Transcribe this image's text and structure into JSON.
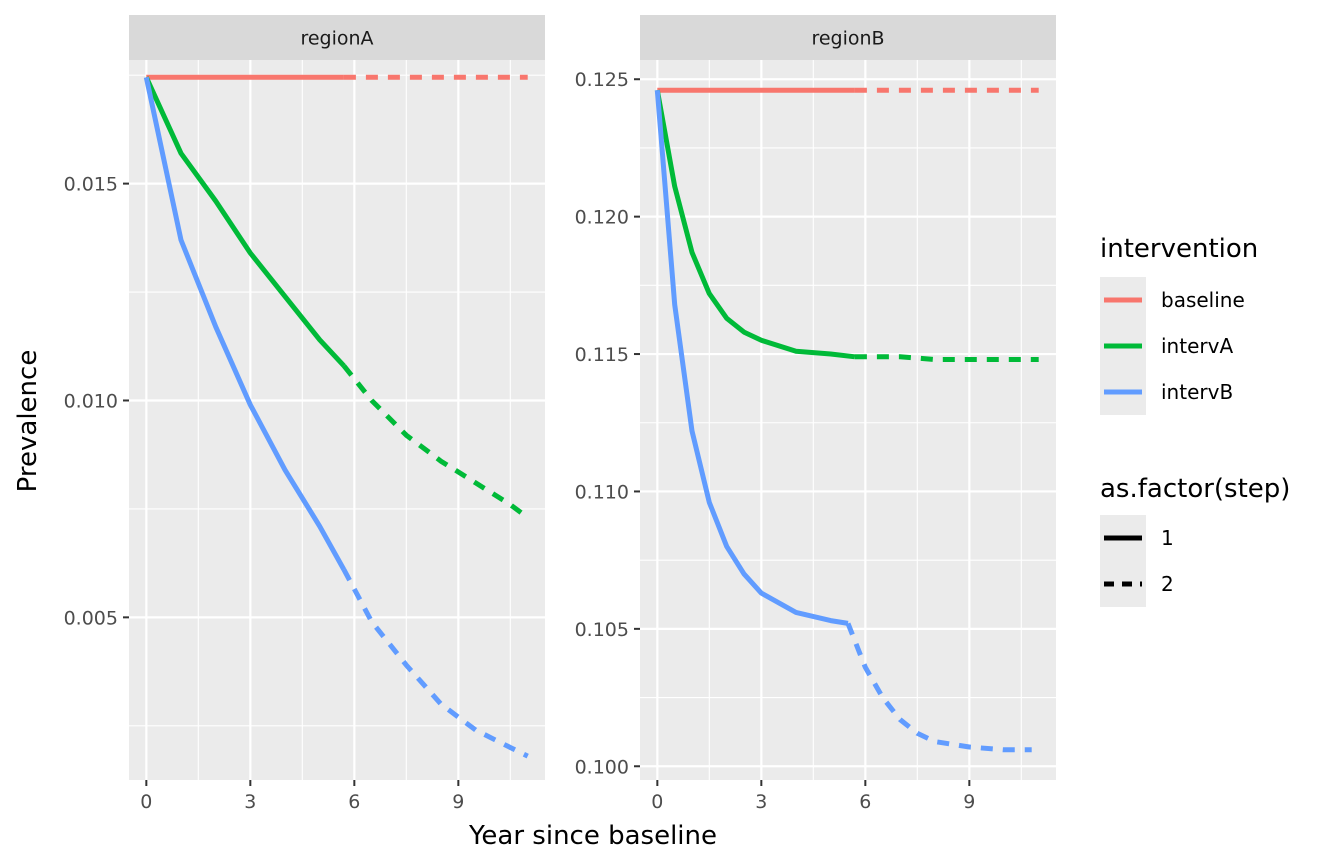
{
  "chart_data": {
    "type": "line",
    "xlabel": "Year since baseline",
    "ylabel": "Prevalence",
    "x_ticks": [
      0,
      3,
      6,
      9
    ],
    "legend_placement": "right",
    "grid": true,
    "linetype_legend": {
      "title": "as.factor(step)",
      "entries": [
        {
          "label": "1",
          "dash": "solid"
        },
        {
          "label": "2",
          "dash": "dashed"
        }
      ]
    },
    "color_legend": {
      "title": "intervention",
      "entries": [
        {
          "label": "baseline",
          "color": "#F8766D"
        },
        {
          "label": "intervA",
          "color": "#00BA38"
        },
        {
          "label": "intervB",
          "color": "#619CFF"
        }
      ]
    },
    "panels": [
      {
        "strip": "regionA",
        "xlim": [
          -0.5,
          11.5
        ],
        "ylim": [
          0.00125,
          0.01785
        ],
        "y_ticks": [
          0.005,
          0.01,
          0.015
        ],
        "y_tick_labels": [
          "0.005",
          "0.010",
          "0.015"
        ],
        "series": [
          {
            "intervention": "baseline",
            "color": "#F8766D",
            "step": 1,
            "x": [
              0,
              5.7
            ],
            "y": [
              0.01745,
              0.01745
            ]
          },
          {
            "intervention": "baseline",
            "color": "#F8766D",
            "step": 2,
            "x": [
              5.7,
              11
            ],
            "y": [
              0.01745,
              0.01745
            ]
          },
          {
            "intervention": "intervA",
            "color": "#00BA38",
            "step": 1,
            "x": [
              0,
              1,
              2,
              3,
              4,
              5,
              5.7
            ],
            "y": [
              0.01745,
              0.0157,
              0.0146,
              0.0134,
              0.0124,
              0.0114,
              0.0108
            ]
          },
          {
            "intervention": "intervA",
            "color": "#00BA38",
            "step": 2,
            "x": [
              5.7,
              6.5,
              7.5,
              8.5,
              9.5,
              10.5,
              11
            ],
            "y": [
              0.0108,
              0.01,
              0.0092,
              0.0086,
              0.0081,
              0.0076,
              0.0073
            ]
          },
          {
            "intervention": "intervB",
            "color": "#619CFF",
            "step": 1,
            "x": [
              0,
              1,
              2,
              3,
              4,
              5,
              5.7
            ],
            "y": [
              0.01745,
              0.0137,
              0.0117,
              0.0099,
              0.0084,
              0.0071,
              0.0061
            ]
          },
          {
            "intervention": "intervB",
            "color": "#619CFF",
            "step": 2,
            "x": [
              5.7,
              6.5,
              7.5,
              8.5,
              9.5,
              10.5,
              11
            ],
            "y": [
              0.0061,
              0.0049,
              0.0039,
              0.003,
              0.0024,
              0.002,
              0.0018
            ]
          }
        ]
      },
      {
        "strip": "regionB",
        "xlim": [
          -0.5,
          11.5
        ],
        "ylim": [
          0.0995,
          0.1257
        ],
        "y_ticks": [
          0.1,
          0.105,
          0.11,
          0.115,
          0.12,
          0.125
        ],
        "y_tick_labels": [
          "0.100",
          "0.105",
          "0.110",
          "0.115",
          "0.120",
          "0.125"
        ],
        "series": [
          {
            "intervention": "baseline",
            "color": "#F8766D",
            "step": 1,
            "x": [
              0,
              5.7
            ],
            "y": [
              0.1246,
              0.1246
            ]
          },
          {
            "intervention": "baseline",
            "color": "#F8766D",
            "step": 2,
            "x": [
              5.7,
              11
            ],
            "y": [
              0.1246,
              0.1246
            ]
          },
          {
            "intervention": "intervA",
            "color": "#00BA38",
            "step": 1,
            "x": [
              0,
              0.5,
              1,
              1.5,
              2,
              2.5,
              3,
              4,
              5,
              5.7
            ],
            "y": [
              0.1246,
              0.1211,
              0.1187,
              0.1172,
              0.1163,
              0.1158,
              0.1155,
              0.1151,
              0.115,
              0.1149
            ]
          },
          {
            "intervention": "intervA",
            "color": "#00BA38",
            "step": 2,
            "x": [
              5.7,
              7,
              8,
              9,
              10,
              11
            ],
            "y": [
              0.1149,
              0.1149,
              0.1148,
              0.1148,
              0.1148,
              0.1148
            ]
          },
          {
            "intervention": "intervB",
            "color": "#619CFF",
            "step": 1,
            "x": [
              0,
              0.5,
              1,
              1.5,
              2,
              2.5,
              3,
              4,
              5,
              5.5
            ],
            "y": [
              0.1246,
              0.1168,
              0.1122,
              0.1096,
              0.108,
              0.107,
              0.1063,
              0.1056,
              0.1053,
              0.1052
            ]
          },
          {
            "intervention": "intervB",
            "color": "#619CFF",
            "step": 2,
            "x": [
              5.5,
              6,
              6.5,
              7,
              7.5,
              8,
              9,
              10,
              10.8
            ],
            "y": [
              0.1052,
              0.1036,
              0.1025,
              0.1017,
              0.1012,
              0.1009,
              0.1007,
              0.1006,
              0.1006
            ]
          }
        ]
      }
    ]
  }
}
